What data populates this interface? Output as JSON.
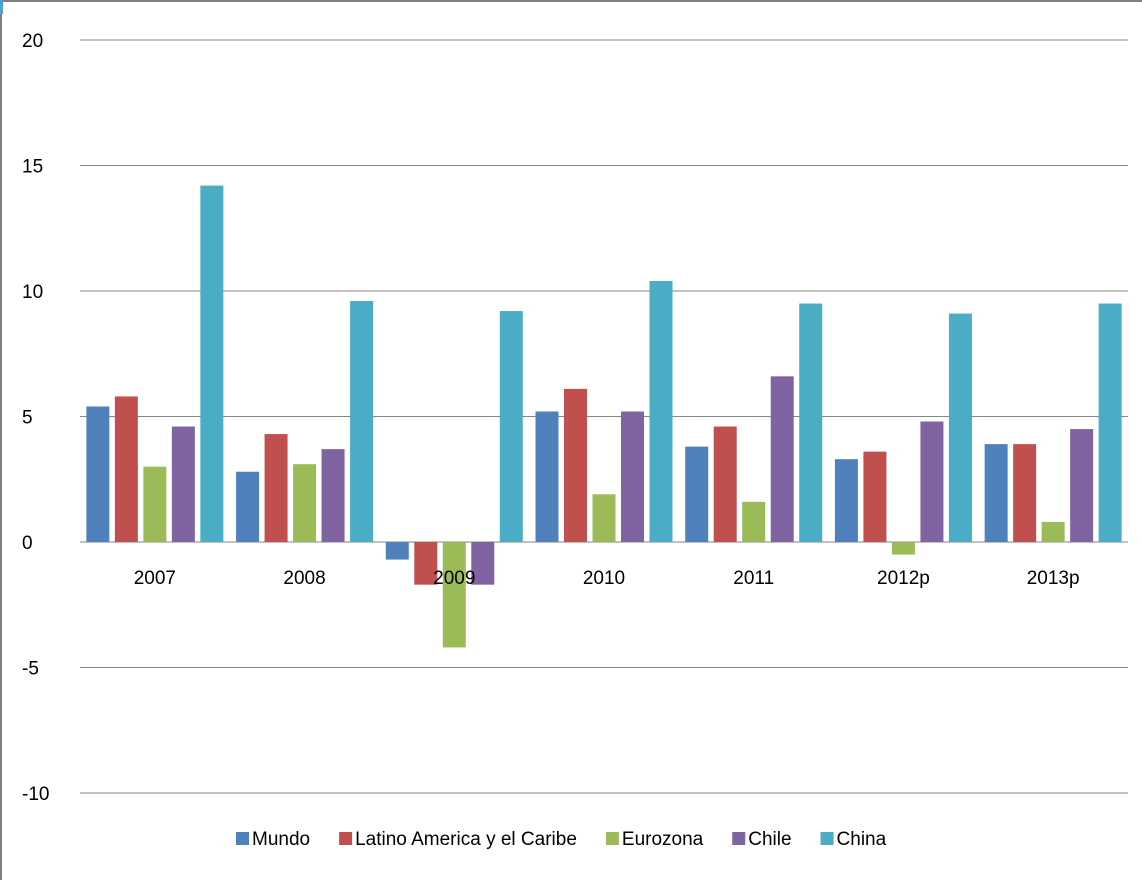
{
  "chart_data": {
    "type": "bar",
    "title": "",
    "xlabel": "",
    "ylabel": "",
    "ylim": [
      -10,
      20
    ],
    "y_ticks": [
      20,
      15,
      10,
      5,
      0,
      -5,
      -10
    ],
    "grid": true,
    "legend_position": "bottom",
    "categories": [
      "2007",
      "2008",
      "2009",
      "2010",
      "2011",
      "2012p",
      "2013p"
    ],
    "series": [
      {
        "name": "Mundo",
        "color": "#4f81bd",
        "values": [
          5.4,
          2.8,
          -0.7,
          5.2,
          3.8,
          3.3,
          3.9
        ]
      },
      {
        "name": "Latino America y el Caribe",
        "color": "#c0504d",
        "values": [
          5.8,
          4.3,
          -1.7,
          6.1,
          4.6,
          3.6,
          3.9
        ]
      },
      {
        "name": "Eurozona",
        "color": "#9bbb59",
        "values": [
          3.0,
          3.1,
          -4.2,
          1.9,
          1.6,
          -0.5,
          0.8
        ]
      },
      {
        "name": "Chile",
        "color": "#8064a2",
        "values": [
          4.6,
          3.7,
          -1.7,
          5.2,
          6.6,
          4.8,
          4.5
        ]
      },
      {
        "name": "China",
        "color": "#4bacc6",
        "values": [
          14.2,
          9.6,
          9.2,
          10.4,
          9.5,
          9.1,
          9.5
        ]
      }
    ]
  }
}
